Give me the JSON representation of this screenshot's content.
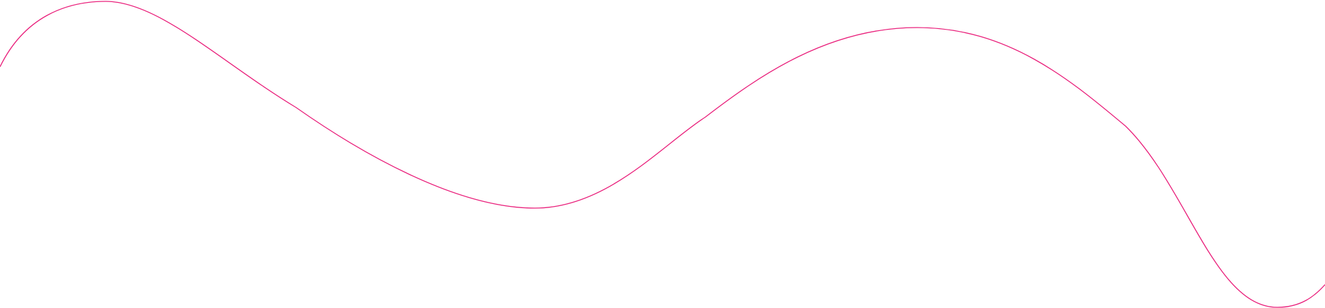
{
  "decoration": {
    "line_color": "#e91e7a",
    "background_color": "#ffffff"
  }
}
